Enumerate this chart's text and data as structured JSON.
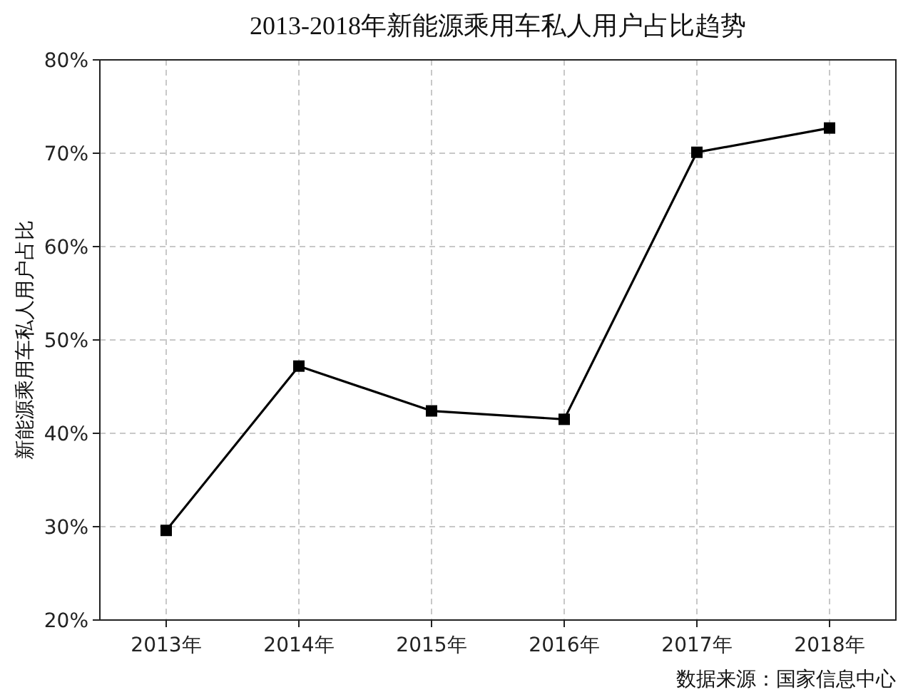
{
  "chart_data": {
    "type": "line",
    "title": "2013-2018年新能源乘用车私人用户占比趋势",
    "ylabel": "新能源乘用车私人用户占比",
    "categories": [
      "2013年",
      "2014年",
      "2015年",
      "2016年",
      "2017年",
      "2018年"
    ],
    "series": [
      {
        "color": "#000000",
        "values": [
          29.6,
          47.2,
          42.4,
          41.5,
          70.1,
          72.7
        ]
      }
    ],
    "ylim": [
      20,
      80
    ],
    "yticks": [
      {
        "value": 20,
        "label": "20%"
      },
      {
        "value": 30,
        "label": "30%"
      },
      {
        "value": 40,
        "label": "40%"
      },
      {
        "value": 50,
        "label": "50%"
      },
      {
        "value": 60,
        "label": "60%"
      },
      {
        "value": 70,
        "label": "70%"
      },
      {
        "value": 80,
        "label": "80%"
      }
    ],
    "grid": true,
    "marker": "square",
    "line_style": "solid",
    "annotations": [
      "数据来源：国家信息中心"
    ]
  }
}
